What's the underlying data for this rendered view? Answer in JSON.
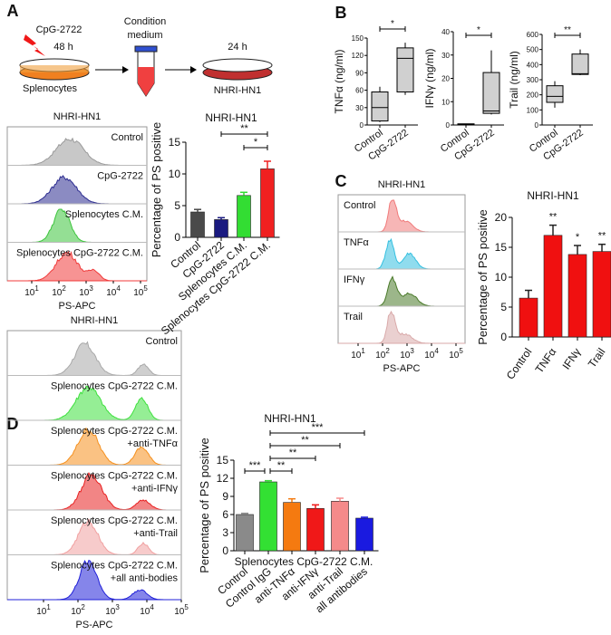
{
  "panels": {
    "A": {
      "label": "A",
      "diagram": {
        "stimulus": "CpG-2722",
        "time1": "48 h",
        "cells1": "Splenocytes",
        "medium_line1": "Condition",
        "medium_line2": "medium",
        "time2": "24 h",
        "cells2": "NHRI-HN1"
      },
      "histogram": {
        "title": "NHRI-HN1",
        "xlabel": "PS-APC",
        "xticks": [
          "1",
          "2",
          "3",
          "4",
          "5"
        ],
        "rows": [
          {
            "label": "Control",
            "color": "#9a9a9a"
          },
          {
            "label": "CpG-2722",
            "color": "#2b2b8f"
          },
          {
            "label": "Splenocytes C.M.",
            "color": "#3cc43c"
          },
          {
            "label": "Splenocytes CpG-2722 C.M.",
            "color": "#f03a3a"
          }
        ]
      }
    },
    "B": {
      "label": "B"
    },
    "C": {
      "label": "C",
      "histogram": {
        "title": "NHRI-HN1",
        "xlabel": "PS-APC",
        "xticks": [
          "1",
          "2",
          "3",
          "4",
          "5"
        ],
        "rows": [
          {
            "label": "Control",
            "color": "#f07a7a"
          },
          {
            "label": "TNFα",
            "color": "#35c0e0"
          },
          {
            "label": "IFNγ",
            "color": "#4a7a2a"
          },
          {
            "label": "Trail",
            "color": "#d9aaaa"
          }
        ]
      }
    },
    "D": {
      "label": "D",
      "histogram": {
        "title": "NHRI-HN1",
        "xlabel": "PS-APC",
        "xticks": [
          "1",
          "2",
          "3",
          "4",
          "5"
        ],
        "rows": [
          {
            "label": "Control",
            "label2": "",
            "color": "#a8a8a8"
          },
          {
            "label": "Splenocytes CpG-2722 C.M.",
            "label2": "",
            "color": "#3ee03e"
          },
          {
            "label": "Splenocytes CpG-2722 C.M.",
            "label2": "+anti-TNFα",
            "color": "#f5901e"
          },
          {
            "label": "Splenocytes CpG-2722 C.M.",
            "label2": "+anti-IFNγ",
            "color": "#e82020"
          },
          {
            "label": "Splenocytes CpG-2722 C.M.",
            "label2": "+anti-Trail",
            "color": "#f0a0a0"
          },
          {
            "label": "Splenocytes CpG-2722 C.M.",
            "label2": "+all anti-bodies",
            "color": "#2020d8"
          }
        ]
      }
    }
  },
  "chart_data": [
    {
      "id": "A-bar",
      "type": "bar",
      "title": "NHRI-HN1",
      "ylabel": "Percentage of PS positive",
      "ylim": [
        0,
        15
      ],
      "yticks": [
        0,
        5,
        10,
        15
      ],
      "categories": [
        "Control",
        "CpG-2722",
        "Splenocytes C.M.",
        "Splenocytes CpG-2722 C.M."
      ],
      "values": [
        4.0,
        2.8,
        6.6,
        10.8
      ],
      "errors": [
        0.4,
        0.3,
        0.5,
        1.2
      ],
      "colors": [
        "#4a4a4a",
        "#1a1a80",
        "#33dd33",
        "#f02020"
      ],
      "significance": [
        {
          "from": 1,
          "to": 3,
          "label": "**"
        },
        {
          "from": 2,
          "to": 3,
          "label": "*"
        }
      ]
    },
    {
      "id": "B-tnf",
      "type": "box",
      "ylabel": "TNFα (ng/ml)",
      "ylim": [
        0,
        150
      ],
      "yticks": [
        0,
        30,
        60,
        90,
        120,
        150
      ],
      "categories": [
        "Control",
        "CpG-2722"
      ],
      "boxes": [
        {
          "min": 5,
          "q1": 7,
          "median": 30,
          "q3": 57,
          "max": 66
        },
        {
          "min": 52,
          "q1": 57,
          "median": 115,
          "q3": 133,
          "max": 142
        }
      ],
      "significance": [
        {
          "from": 0,
          "to": 1,
          "label": "*"
        }
      ]
    },
    {
      "id": "B-ifn",
      "type": "box",
      "ylabel": "IFNγ (ng/ml)",
      "ylim": [
        0,
        40
      ],
      "yticks": [
        0,
        10,
        20,
        30,
        40
      ],
      "categories": [
        "Control",
        "CpG-2722"
      ],
      "boxes": [
        {
          "min": 0.1,
          "q1": 0.2,
          "median": 0.3,
          "q3": 0.5,
          "max": 0.6
        },
        {
          "min": 4.5,
          "q1": 5,
          "median": 6,
          "q3": 22.5,
          "max": 32
        }
      ],
      "significance": [
        {
          "from": 0,
          "to": 1,
          "label": "*"
        }
      ]
    },
    {
      "id": "B-trail",
      "type": "box",
      "ylabel": "Trail (ng/ml)",
      "ylim": [
        0,
        600
      ],
      "yticks": [
        0,
        100,
        200,
        300,
        400,
        500,
        600
      ],
      "categories": [
        "Control",
        "CpG-2722"
      ],
      "boxes": [
        {
          "min": 115,
          "q1": 150,
          "median": 190,
          "q3": 260,
          "max": 290
        },
        {
          "min": 330,
          "q1": 335,
          "median": 340,
          "q3": 470,
          "max": 500
        }
      ],
      "significance": [
        {
          "from": 0,
          "to": 1,
          "label": "**"
        }
      ]
    },
    {
      "id": "C-bar",
      "type": "bar",
      "title": "NHRI-HN1",
      "ylabel": "Percentage of PS positive",
      "ylim": [
        0,
        20
      ],
      "yticks": [
        0,
        5,
        10,
        15,
        20
      ],
      "categories": [
        "Control",
        "TNFα",
        "IFNγ",
        "Trail"
      ],
      "values": [
        6.5,
        17.0,
        13.8,
        14.3
      ],
      "errors": [
        1.3,
        1.7,
        1.5,
        1.2
      ],
      "colors": [
        "#f01010",
        "#f01010",
        "#f01010",
        "#f01010"
      ],
      "bar_labels": [
        "",
        "**",
        "*",
        "**"
      ]
    },
    {
      "id": "D-bar",
      "type": "bar",
      "title": "NHRI-HN1",
      "ylabel": "Percentage of PS positive",
      "ylim": [
        0,
        15
      ],
      "yticks": [
        0,
        3,
        6,
        9,
        12,
        15
      ],
      "group_label": "Splenocytes CpG-2722 C.M.",
      "categories": [
        "Control",
        "Control IgG",
        "anti-TNFα",
        "anti-IFNγ",
        "anti-Trail",
        "all antibodies"
      ],
      "values": [
        6.0,
        11.4,
        8.0,
        7.0,
        8.2,
        5.4
      ],
      "errors": [
        0.2,
        0.2,
        0.6,
        0.6,
        0.5,
        0.15
      ],
      "colors": [
        "#8a8a8a",
        "#33e033",
        "#f57a10",
        "#f01818",
        "#f58a8a",
        "#1a1ae0"
      ],
      "significance": [
        {
          "from": 0,
          "to": 1,
          "label": "***"
        },
        {
          "from": 1,
          "to": 2,
          "label": "**"
        },
        {
          "from": 1,
          "to": 3,
          "label": "**"
        },
        {
          "from": 1,
          "to": 4,
          "label": "**"
        },
        {
          "from": 1,
          "to": 5,
          "label": "***"
        }
      ]
    }
  ]
}
